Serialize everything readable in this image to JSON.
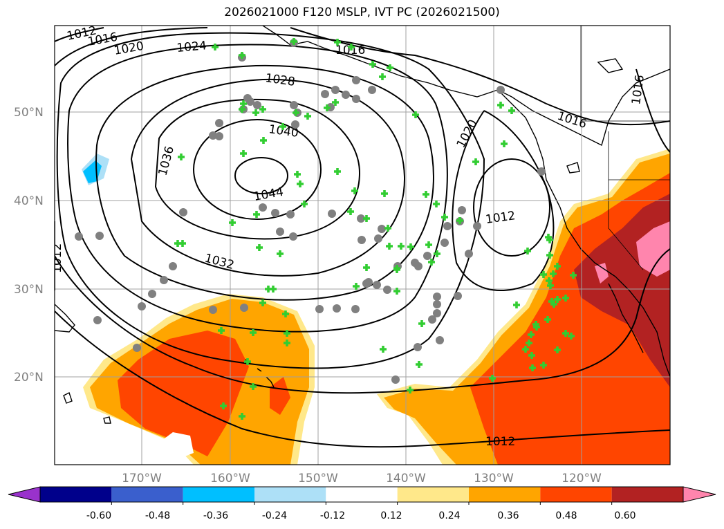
{
  "title": "2026021000 F120 MSLP, IVT PC (2026021500)",
  "latitude_labels": [
    "50°N",
    "40°N",
    "30°N",
    "20°N"
  ],
  "longitude_labels": [
    "170°W",
    "160°W",
    "150°W",
    "140°W",
    "130°W",
    "120°W"
  ],
  "isobar_labels": [
    "1012",
    "1016",
    "1020",
    "1024",
    "1028",
    "1032",
    "1036",
    "1040",
    "1044",
    "1016",
    "1020",
    "1012",
    "1016",
    "1016",
    "1012",
    "1012"
  ],
  "colorbar": {
    "tick_labels": [
      "-0.60",
      "-0.48",
      "-0.36",
      "-0.24",
      "-0.12",
      "0.12",
      "0.24",
      "0.36",
      "0.48",
      "0.60"
    ],
    "colors": [
      "#9932CC",
      "#00008B",
      "#3A5FCD",
      "#00BFFF",
      "#ADE0F7",
      "#FFFFFF",
      "#FFE88A",
      "#FFA500",
      "#FF4500",
      "#B22222",
      "#FF85AD"
    ]
  },
  "marker_colors": {
    "circle": "#808080",
    "plus": "#32CD32"
  }
}
